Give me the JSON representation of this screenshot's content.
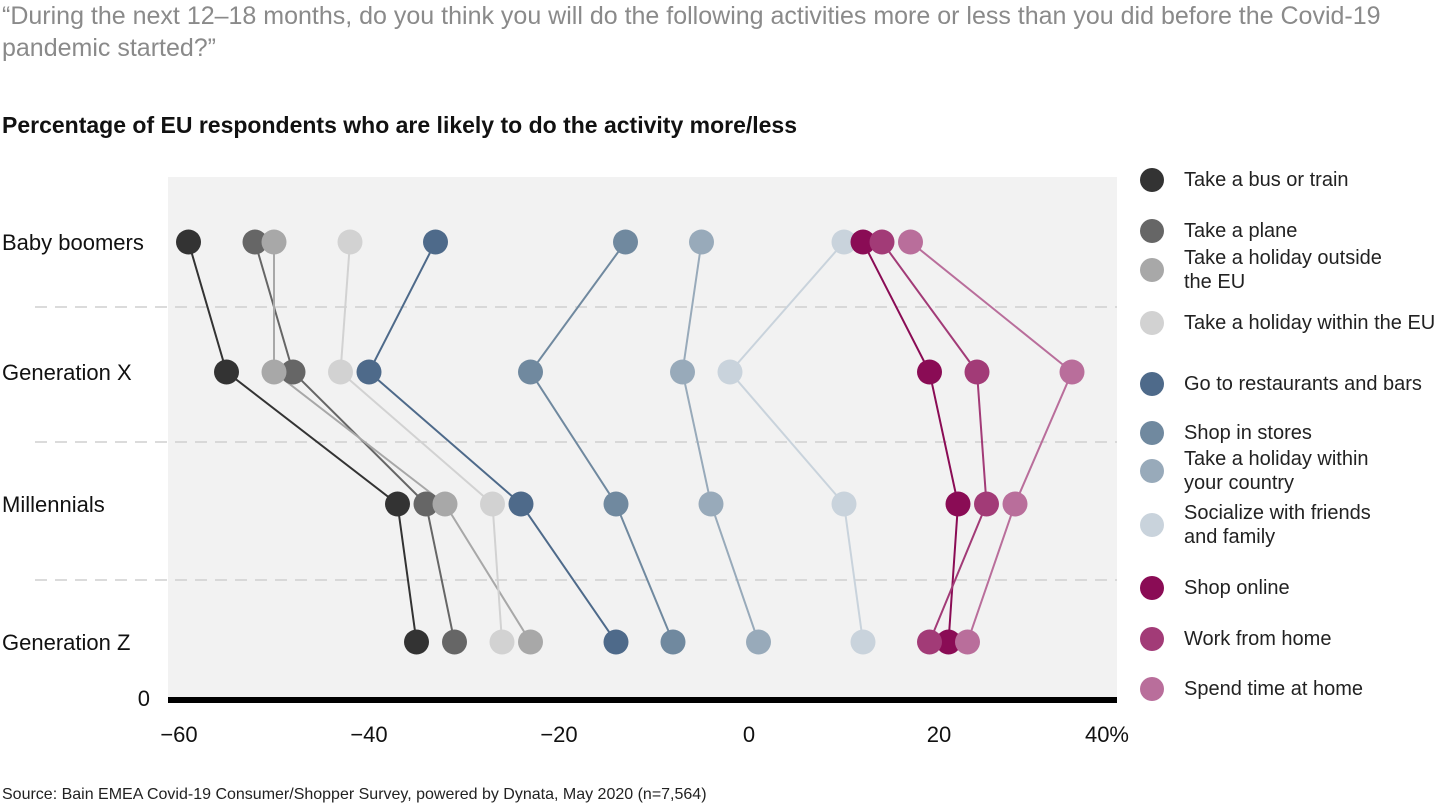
{
  "question": "“During the next 12–18 months, do you think you will do the following activities more or less than you did before the Covid-19 pandemic started?”",
  "source": "Source: Bain EMEA Covid-19 Consumer/Shopper Survey, powered by Dynata, May 2020 (n=7,564)",
  "chart_data": {
    "type": "scatter",
    "title": "Percentage of EU respondents who are likely to do the activity more/less",
    "categories": [
      "Baby boomers",
      "Generation X",
      "Millennials",
      "Generation Z"
    ],
    "y_origin_label": "0",
    "xlim": [
      -60,
      40
    ],
    "x_ticks": [
      -60,
      -40,
      -20,
      0,
      20,
      40
    ],
    "x_tick_labels": [
      "−60",
      "−40",
      "−20",
      "0",
      "20",
      "40%"
    ],
    "legend_position": "right",
    "series": [
      {
        "name": "Take a bus or train",
        "color": "#333333",
        "values": [
          -59,
          -55,
          -37,
          -35
        ]
      },
      {
        "name": "Take a plane",
        "color": "#666666",
        "values": [
          -52,
          -48,
          -34,
          -31
        ]
      },
      {
        "name": "Take a holiday outside the EU",
        "color": "#a8a8a8",
        "values": [
          -50,
          -50,
          -32,
          -23
        ]
      },
      {
        "name": "Take a holiday within the EU",
        "color": "#d2d2d2",
        "values": [
          -42,
          -43,
          -27,
          -26
        ]
      },
      {
        "name": "Go to restaurants and bars",
        "color": "#4e6a8a",
        "values": [
          -33,
          -40,
          -24,
          -14
        ]
      },
      {
        "name": "Shop in stores",
        "color": "#70899f",
        "values": [
          -13,
          -23,
          -14,
          -8
        ]
      },
      {
        "name": "Take a holiday within your country",
        "color": "#98aaba",
        "values": [
          -5,
          -7,
          -4,
          1
        ]
      },
      {
        "name": "Socialize with friends and family",
        "color": "#c9d3dc",
        "values": [
          10,
          -2,
          10,
          12
        ]
      },
      {
        "name": "Shop online",
        "color": "#8a0c55",
        "values": [
          12,
          19,
          22,
          21
        ]
      },
      {
        "name": "Work from home",
        "color": "#a23b77",
        "values": [
          14,
          24,
          25,
          19
        ]
      },
      {
        "name": "Spend time at home",
        "color": "#b96e9b",
        "values": [
          17,
          34,
          28,
          23
        ]
      }
    ]
  }
}
